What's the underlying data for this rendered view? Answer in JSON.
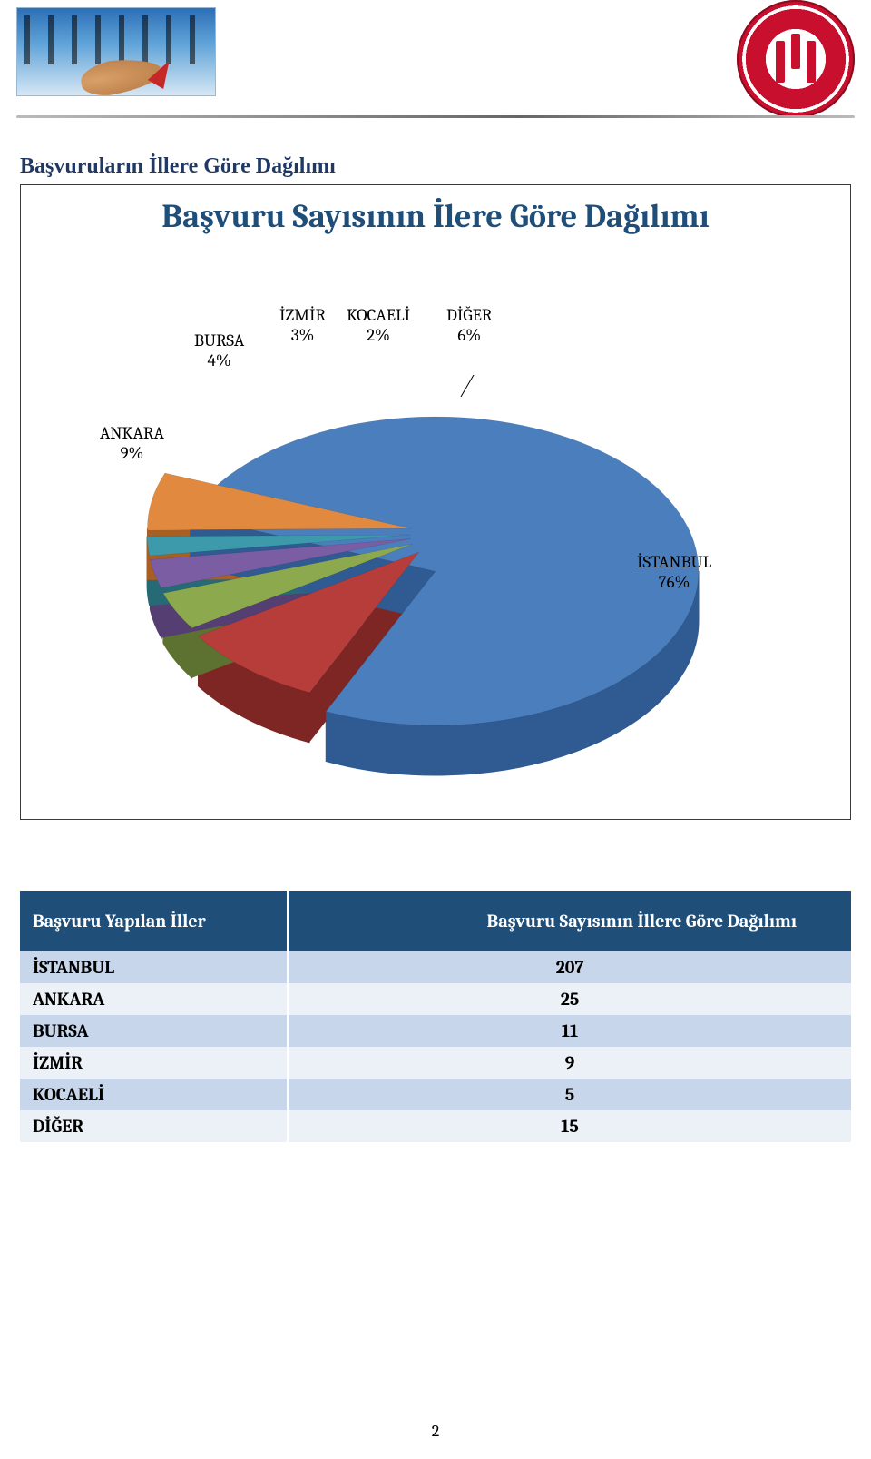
{
  "page_number": "2",
  "section_title": "Başvuruların İllere Göre Dağılımı",
  "chart": {
    "type": "pie",
    "title": "Başvuru Sayısının İlere Göre Dağılımı",
    "title_color": "#1f4e79",
    "title_fontsize": 36,
    "background_color": "#ffffff",
    "border_color": "#3a3a3a",
    "label_fontsize": 19,
    "label_color": "#000000",
    "slices": [
      {
        "name": "İSTANBUL",
        "percent": 76,
        "color_top": "#4a7ebc",
        "color_side": "#2f5a92"
      },
      {
        "name": "ANKARA",
        "percent": 9,
        "color_top": "#b73d3b",
        "color_side": "#7d2624"
      },
      {
        "name": "BURSA",
        "percent": 4,
        "color_top": "#8ca94e",
        "color_side": "#5d7230"
      },
      {
        "name": "İZMİR",
        "percent": 3,
        "color_top": "#7b5da3",
        "color_side": "#543e72"
      },
      {
        "name": "KOCAELİ",
        "percent": 2,
        "color_top": "#3c9aab",
        "color_side": "#266a76"
      },
      {
        "name": "DİĞER",
        "percent": 6,
        "color_top": "#e0893f",
        "color_side": "#a85f24"
      }
    ],
    "labels": {
      "ankara": "ANKARA\n9%",
      "bursa": "BURSA\n4%",
      "izmir": "İZMİR\n3%",
      "kocaeli": "KOCAELİ\n2%",
      "diger": "DİĞER\n6%",
      "istanbul": "İSTANBUL\n76%"
    }
  },
  "table": {
    "columns": [
      "Başvuru Yapılan İller",
      "Başvuru Sayısının İllere Göre Dağılımı"
    ],
    "header_bg": "#1f4e79",
    "header_color": "#ffffff",
    "row_light_bg": "#c7d6ea",
    "row_dark_bg": "#ecf1f8",
    "fontsize": 20,
    "rows": [
      {
        "city": "İSTANBUL",
        "value": "207"
      },
      {
        "city": "ANKARA",
        "value": "25"
      },
      {
        "city": "BURSA",
        "value": "11"
      },
      {
        "city": "İZMİR",
        "value": "9"
      },
      {
        "city": "KOCAELİ",
        "value": "5"
      },
      {
        "city": "DİĞER",
        "value": "15"
      }
    ]
  }
}
